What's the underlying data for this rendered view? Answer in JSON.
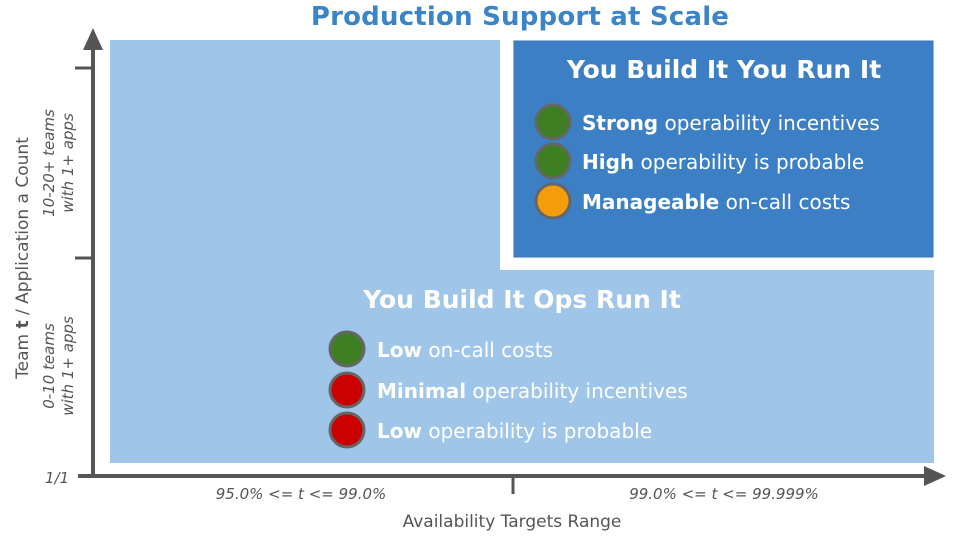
{
  "title": "Production Support at Scale",
  "regions": {
    "top": {
      "title": "You Build It You Run It",
      "items": [
        {
          "bold": "Strong",
          "rest": " operability incentives",
          "status": "green"
        },
        {
          "bold": "High",
          "rest": " operability is probable",
          "status": "green"
        },
        {
          "bold": "Manageable",
          "rest": " on-call costs",
          "status": "orange"
        }
      ]
    },
    "bottom": {
      "title": "You Build It Ops Run It",
      "items": [
        {
          "bold": "Low",
          "rest": " on-call costs",
          "status": "green"
        },
        {
          "bold": "Minimal",
          "rest": " operability incentives",
          "status": "red"
        },
        {
          "bold": "Low",
          "rest": " operability is probable",
          "status": "red"
        }
      ]
    }
  },
  "axes": {
    "y_label_part1": "Team ",
    "y_label_bold": "t",
    "y_label_part2": " / Application a Count",
    "y_ticks": {
      "upper_line1": "10-20+ teams",
      "upper_line2": "with 1+ apps",
      "lower_line1": "0-10 teams",
      "lower_line2": "with 1+ apps",
      "origin": "1/1"
    },
    "x_label": "Availability Targets Range",
    "x_ticks": {
      "left": "95.0% <= t <= 99.0%",
      "right": "99.0% <= t <= 99.999%"
    }
  },
  "colors": {
    "title": "#3c84c8",
    "light_region": "#9fc5e8",
    "dark_region": "#3d7fc4",
    "green": "#3d7f22",
    "orange": "#f59c0b",
    "red": "#cc0000",
    "axis": "#555555"
  }
}
